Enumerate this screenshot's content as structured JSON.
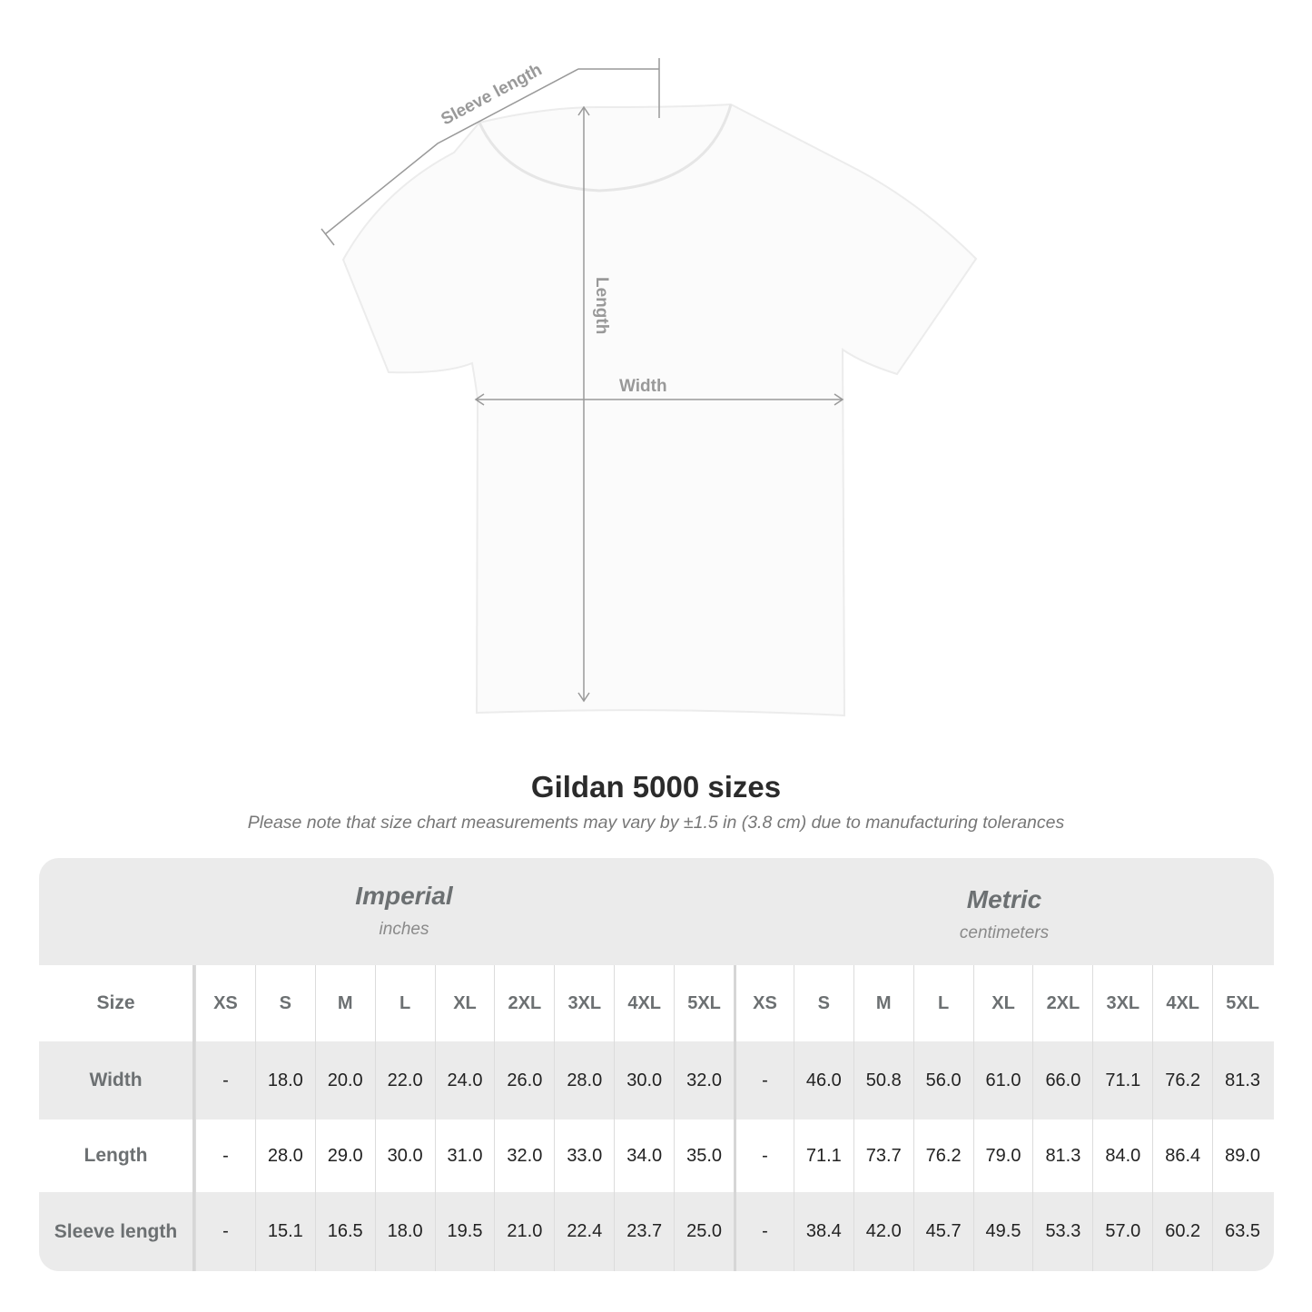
{
  "diagram": {
    "labels": {
      "sleeve": "Sleeve length",
      "length": "Length",
      "width": "Width"
    },
    "line_color": "#999999"
  },
  "title": "Gildan 5000 sizes",
  "subtitle": "Please note that size chart measurements may vary by ±1.5 in (3.8 cm) due to manufacturing tolerances",
  "table": {
    "imperial": {
      "name": "Imperial",
      "unit": "inches"
    },
    "metric": {
      "name": "Metric",
      "unit": "centimeters"
    },
    "size_label": "Size",
    "sizes": [
      "XS",
      "S",
      "M",
      "L",
      "XL",
      "2XL",
      "3XL",
      "4XL",
      "5XL"
    ],
    "rows": [
      {
        "label": "Width",
        "imperial": [
          "-",
          "18.0",
          "20.0",
          "22.0",
          "24.0",
          "26.0",
          "28.0",
          "30.0",
          "32.0"
        ],
        "metric": [
          "-",
          "46.0",
          "50.8",
          "56.0",
          "61.0",
          "66.0",
          "71.1",
          "76.2",
          "81.3"
        ]
      },
      {
        "label": "Length",
        "imperial": [
          "-",
          "28.0",
          "29.0",
          "30.0",
          "31.0",
          "32.0",
          "33.0",
          "34.0",
          "35.0"
        ],
        "metric": [
          "-",
          "71.1",
          "73.7",
          "76.2",
          "79.0",
          "81.3",
          "84.0",
          "86.4",
          "89.0"
        ]
      },
      {
        "label": "Sleeve length",
        "imperial": [
          "-",
          "15.1",
          "16.5",
          "18.0",
          "19.5",
          "21.0",
          "22.4",
          "23.7",
          "25.0"
        ],
        "metric": [
          "-",
          "38.4",
          "42.0",
          "45.7",
          "49.5",
          "53.3",
          "57.0",
          "60.2",
          "63.5"
        ]
      }
    ]
  }
}
